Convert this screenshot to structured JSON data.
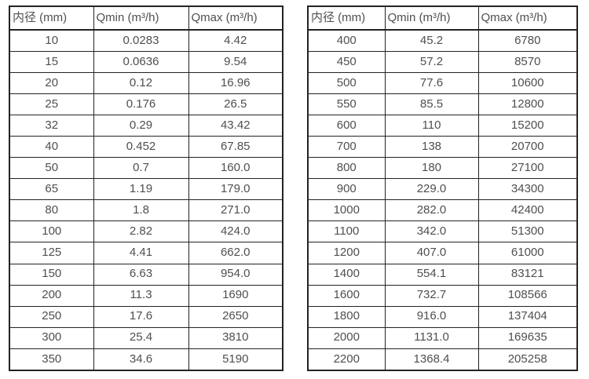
{
  "page": {
    "background_color": "#ffffff",
    "border_color": "#232323",
    "text_color": "#4f4f4f"
  },
  "tables": [
    {
      "name": "flow-range-small-diameters",
      "headers": [
        "内径 (mm)",
        "Qmin (m³/h)",
        "Qmax (m³/h)"
      ],
      "rows": [
        [
          "10",
          "0.0283",
          "4.42"
        ],
        [
          "15",
          "0.0636",
          "9.54"
        ],
        [
          "20",
          "0.12",
          "16.96"
        ],
        [
          "25",
          "0.176",
          "26.5"
        ],
        [
          "32",
          "0.29",
          "43.42"
        ],
        [
          "40",
          "0.452",
          "67.85"
        ],
        [
          "50",
          "0.7",
          "160.0"
        ],
        [
          "65",
          "1.19",
          "179.0"
        ],
        [
          "80",
          "1.8",
          "271.0"
        ],
        [
          "100",
          "2.82",
          "424.0"
        ],
        [
          "125",
          "4.41",
          "662.0"
        ],
        [
          "150",
          "6.63",
          "954.0"
        ],
        [
          "200",
          "11.3",
          "1690"
        ],
        [
          "250",
          "17.6",
          "2650"
        ],
        [
          "300",
          "25.4",
          "3810"
        ],
        [
          "350",
          "34.6",
          "5190"
        ]
      ]
    },
    {
      "name": "flow-range-large-diameters",
      "headers": [
        "内径 (mm)",
        "Qmin (m³/h)",
        "Qmax (m³/h)"
      ],
      "rows": [
        [
          "400",
          "45.2",
          "6780"
        ],
        [
          "450",
          "57.2",
          "8570"
        ],
        [
          "500",
          "77.6",
          "10600"
        ],
        [
          "550",
          "85.5",
          "12800"
        ],
        [
          "600",
          "110",
          "15200"
        ],
        [
          "700",
          "138",
          "20700"
        ],
        [
          "800",
          "180",
          "27100"
        ],
        [
          "900",
          "229.0",
          "34300"
        ],
        [
          "1000",
          "282.0",
          "42400"
        ],
        [
          "1100",
          "342.0",
          "51300"
        ],
        [
          "1200",
          "407.0",
          "61000"
        ],
        [
          "1400",
          "554.1",
          "83121"
        ],
        [
          "1600",
          "732.7",
          "108566"
        ],
        [
          "1800",
          "916.0",
          "137404"
        ],
        [
          "2000",
          "1131.0",
          "169635"
        ],
        [
          "2200",
          "1368.4",
          "205258"
        ]
      ]
    }
  ]
}
